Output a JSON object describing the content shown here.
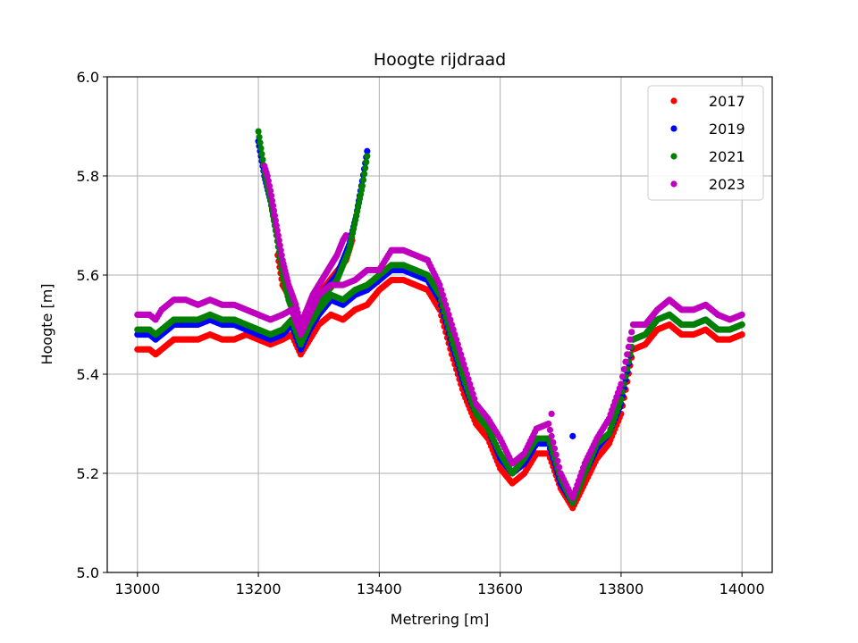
{
  "chart_data": {
    "type": "scatter",
    "title": "Hoogte rijdraad",
    "xlabel": "Metrering [m]",
    "ylabel": "Hoogte [m]",
    "xlim": [
      12950,
      14050
    ],
    "ylim": [
      5.0,
      6.0
    ],
    "xticks": [
      13000,
      13200,
      13400,
      13600,
      13800,
      14000
    ],
    "xtick_labels": [
      "13000",
      "13200",
      "13400",
      "13600",
      "13800",
      "14000"
    ],
    "yticks": [
      5.0,
      5.2,
      5.4,
      5.6,
      5.8,
      6.0
    ],
    "ytick_labels": [
      "5.0",
      "5.2",
      "5.4",
      "5.6",
      "5.8",
      "6.0"
    ],
    "grid": true,
    "legend_position": "top-right",
    "series": [
      {
        "name": "2017",
        "color": "#ff0000",
        "points": [
          [
            13000,
            5.45
          ],
          [
            13020,
            5.45
          ],
          [
            13030,
            5.44
          ],
          [
            13040,
            5.45
          ],
          [
            13060,
            5.47
          ],
          [
            13080,
            5.47
          ],
          [
            13100,
            5.47
          ],
          [
            13120,
            5.48
          ],
          [
            13140,
            5.47
          ],
          [
            13160,
            5.47
          ],
          [
            13180,
            5.48
          ],
          [
            13200,
            5.47
          ],
          [
            13220,
            5.46
          ],
          [
            13240,
            5.47
          ],
          [
            13255,
            5.48
          ],
          [
            13270,
            5.44
          ],
          [
            13285,
            5.47
          ],
          [
            13300,
            5.5
          ],
          [
            13320,
            5.52
          ],
          [
            13340,
            5.51
          ],
          [
            13360,
            5.53
          ],
          [
            13380,
            5.54
          ],
          [
            13400,
            5.57
          ],
          [
            13420,
            5.59
          ],
          [
            13440,
            5.59
          ],
          [
            13460,
            5.58
          ],
          [
            13480,
            5.57
          ],
          [
            13500,
            5.53
          ],
          [
            13520,
            5.44
          ],
          [
            13540,
            5.36
          ],
          [
            13560,
            5.3
          ],
          [
            13580,
            5.27
          ],
          [
            13600,
            5.21
          ],
          [
            13620,
            5.18
          ],
          [
            13640,
            5.2
          ],
          [
            13660,
            5.24
          ],
          [
            13680,
            5.24
          ],
          [
            13700,
            5.17
          ],
          [
            13720,
            5.13
          ],
          [
            13740,
            5.18
          ],
          [
            13760,
            5.23
          ],
          [
            13780,
            5.26
          ],
          [
            13800,
            5.32
          ],
          [
            13820,
            5.45
          ],
          [
            13840,
            5.46
          ],
          [
            13860,
            5.49
          ],
          [
            13880,
            5.5
          ],
          [
            13900,
            5.48
          ],
          [
            13920,
            5.48
          ],
          [
            13940,
            5.49
          ],
          [
            13960,
            5.47
          ],
          [
            13980,
            5.47
          ],
          [
            14000,
            5.48
          ]
        ],
        "branch": [
          [
            13232,
            5.64
          ],
          [
            13240,
            5.58
          ],
          [
            13250,
            5.56
          ],
          [
            13262,
            5.52
          ],
          [
            13270,
            5.47
          ],
          [
            13300,
            5.56
          ],
          [
            13325,
            5.6
          ],
          [
            13345,
            5.63
          ],
          [
            13355,
            5.67
          ]
        ]
      },
      {
        "name": "2019",
        "color": "#0000ff",
        "points": [
          [
            13000,
            5.48
          ],
          [
            13020,
            5.48
          ],
          [
            13030,
            5.47
          ],
          [
            13040,
            5.48
          ],
          [
            13060,
            5.5
          ],
          [
            13080,
            5.5
          ],
          [
            13100,
            5.5
          ],
          [
            13120,
            5.51
          ],
          [
            13140,
            5.5
          ],
          [
            13160,
            5.5
          ],
          [
            13180,
            5.49
          ],
          [
            13200,
            5.48
          ],
          [
            13220,
            5.47
          ],
          [
            13240,
            5.48
          ],
          [
            13255,
            5.5
          ],
          [
            13270,
            5.45
          ],
          [
            13285,
            5.49
          ],
          [
            13300,
            5.52
          ],
          [
            13320,
            5.55
          ],
          [
            13340,
            5.54
          ],
          [
            13360,
            5.56
          ],
          [
            13380,
            5.57
          ],
          [
            13400,
            5.59
          ],
          [
            13420,
            5.61
          ],
          [
            13440,
            5.61
          ],
          [
            13460,
            5.6
          ],
          [
            13480,
            5.59
          ],
          [
            13500,
            5.55
          ],
          [
            13520,
            5.46
          ],
          [
            13540,
            5.38
          ],
          [
            13560,
            5.32
          ],
          [
            13580,
            5.29
          ],
          [
            13600,
            5.23
          ],
          [
            13620,
            5.2
          ],
          [
            13640,
            5.22
          ],
          [
            13660,
            5.26
          ],
          [
            13680,
            5.26
          ],
          [
            13700,
            5.18
          ],
          [
            13720,
            5.14
          ],
          [
            13740,
            5.2
          ],
          [
            13760,
            5.25
          ],
          [
            13780,
            5.28
          ],
          [
            13800,
            5.34
          ],
          [
            13820,
            5.47
          ],
          [
            13840,
            5.48
          ],
          [
            13860,
            5.51
          ],
          [
            13880,
            5.52
          ],
          [
            13900,
            5.5
          ],
          [
            13920,
            5.5
          ],
          [
            13940,
            5.51
          ],
          [
            13960,
            5.49
          ],
          [
            13980,
            5.49
          ],
          [
            14000,
            5.5
          ]
        ],
        "branch": [
          [
            13200,
            5.87
          ],
          [
            13210,
            5.8
          ],
          [
            13220,
            5.75
          ],
          [
            13230,
            5.69
          ],
          [
            13240,
            5.62
          ],
          [
            13250,
            5.56
          ],
          [
            13262,
            5.52
          ],
          [
            13270,
            5.49
          ],
          [
            13290,
            5.53
          ],
          [
            13310,
            5.57
          ],
          [
            13330,
            5.6
          ],
          [
            13350,
            5.66
          ],
          [
            13362,
            5.72
          ],
          [
            13372,
            5.79
          ],
          [
            13380,
            5.85
          ],
          [
            13720,
            5.275
          ]
        ]
      },
      {
        "name": "2021",
        "color": "#008000",
        "points": [
          [
            13000,
            5.49
          ],
          [
            13020,
            5.49
          ],
          [
            13030,
            5.48
          ],
          [
            13040,
            5.49
          ],
          [
            13060,
            5.51
          ],
          [
            13080,
            5.51
          ],
          [
            13100,
            5.51
          ],
          [
            13120,
            5.52
          ],
          [
            13140,
            5.51
          ],
          [
            13160,
            5.51
          ],
          [
            13180,
            5.5
          ],
          [
            13200,
            5.49
          ],
          [
            13220,
            5.48
          ],
          [
            13240,
            5.49
          ],
          [
            13255,
            5.51
          ],
          [
            13270,
            5.46
          ],
          [
            13285,
            5.5
          ],
          [
            13300,
            5.53
          ],
          [
            13320,
            5.56
          ],
          [
            13340,
            5.55
          ],
          [
            13360,
            5.57
          ],
          [
            13380,
            5.58
          ],
          [
            13400,
            5.6
          ],
          [
            13420,
            5.62
          ],
          [
            13440,
            5.62
          ],
          [
            13460,
            5.61
          ],
          [
            13480,
            5.6
          ],
          [
            13500,
            5.56
          ],
          [
            13520,
            5.47
          ],
          [
            13540,
            5.39
          ],
          [
            13560,
            5.32
          ],
          [
            13580,
            5.29
          ],
          [
            13600,
            5.24
          ],
          [
            13620,
            5.2
          ],
          [
            13640,
            5.23
          ],
          [
            13660,
            5.27
          ],
          [
            13680,
            5.27
          ],
          [
            13700,
            5.19
          ],
          [
            13720,
            5.14
          ],
          [
            13740,
            5.2
          ],
          [
            13760,
            5.26
          ],
          [
            13780,
            5.28
          ],
          [
            13800,
            5.35
          ],
          [
            13820,
            5.47
          ],
          [
            13840,
            5.48
          ],
          [
            13860,
            5.51
          ],
          [
            13880,
            5.52
          ],
          [
            13900,
            5.5
          ],
          [
            13920,
            5.5
          ],
          [
            13940,
            5.51
          ],
          [
            13960,
            5.49
          ],
          [
            13980,
            5.49
          ],
          [
            14000,
            5.5
          ]
        ],
        "branch": [
          [
            13200,
            5.89
          ],
          [
            13210,
            5.81
          ],
          [
            13220,
            5.75
          ],
          [
            13230,
            5.68
          ],
          [
            13240,
            5.6
          ],
          [
            13250,
            5.55
          ],
          [
            13262,
            5.51
          ],
          [
            13270,
            5.48
          ],
          [
            13290,
            5.52
          ],
          [
            13310,
            5.56
          ],
          [
            13330,
            5.59
          ],
          [
            13350,
            5.65
          ],
          [
            13362,
            5.72
          ],
          [
            13372,
            5.78
          ],
          [
            13380,
            5.84
          ]
        ]
      },
      {
        "name": "2023",
        "color": "#bf00bf",
        "points": [
          [
            13000,
            5.52
          ],
          [
            13020,
            5.52
          ],
          [
            13030,
            5.51
          ],
          [
            13040,
            5.53
          ],
          [
            13060,
            5.55
          ],
          [
            13080,
            5.55
          ],
          [
            13100,
            5.54
          ],
          [
            13120,
            5.55
          ],
          [
            13140,
            5.54
          ],
          [
            13160,
            5.54
          ],
          [
            13180,
            5.53
          ],
          [
            13200,
            5.52
          ],
          [
            13220,
            5.51
          ],
          [
            13240,
            5.52
          ],
          [
            13255,
            5.53
          ],
          [
            13270,
            5.48
          ],
          [
            13285,
            5.52
          ],
          [
            13300,
            5.56
          ],
          [
            13320,
            5.58
          ],
          [
            13340,
            5.58
          ],
          [
            13360,
            5.59
          ],
          [
            13380,
            5.61
          ],
          [
            13400,
            5.61
          ],
          [
            13420,
            5.65
          ],
          [
            13440,
            5.65
          ],
          [
            13460,
            5.64
          ],
          [
            13480,
            5.63
          ],
          [
            13500,
            5.58
          ],
          [
            13520,
            5.5
          ],
          [
            13540,
            5.42
          ],
          [
            13560,
            5.34
          ],
          [
            13580,
            5.31
          ],
          [
            13600,
            5.27
          ],
          [
            13620,
            5.22
          ],
          [
            13640,
            5.24
          ],
          [
            13660,
            5.29
          ],
          [
            13680,
            5.3
          ],
          [
            13700,
            5.2
          ],
          [
            13720,
            5.15
          ],
          [
            13740,
            5.22
          ],
          [
            13760,
            5.27
          ],
          [
            13780,
            5.31
          ],
          [
            13800,
            5.38
          ],
          [
            13820,
            5.5
          ],
          [
            13840,
            5.5
          ],
          [
            13860,
            5.53
          ],
          [
            13880,
            5.55
          ],
          [
            13900,
            5.53
          ],
          [
            13920,
            5.53
          ],
          [
            13940,
            5.54
          ],
          [
            13960,
            5.52
          ],
          [
            13980,
            5.51
          ],
          [
            14000,
            5.52
          ]
        ],
        "branch": [
          [
            13210,
            5.82
          ],
          [
            13215,
            5.8
          ],
          [
            13220,
            5.77
          ],
          [
            13230,
            5.7
          ],
          [
            13240,
            5.63
          ],
          [
            13250,
            5.58
          ],
          [
            13262,
            5.54
          ],
          [
            13270,
            5.5
          ],
          [
            13290,
            5.56
          ],
          [
            13310,
            5.6
          ],
          [
            13330,
            5.64
          ],
          [
            13340,
            5.67
          ],
          [
            13345,
            5.68
          ],
          [
            13685,
            5.32
          ]
        ]
      }
    ]
  }
}
